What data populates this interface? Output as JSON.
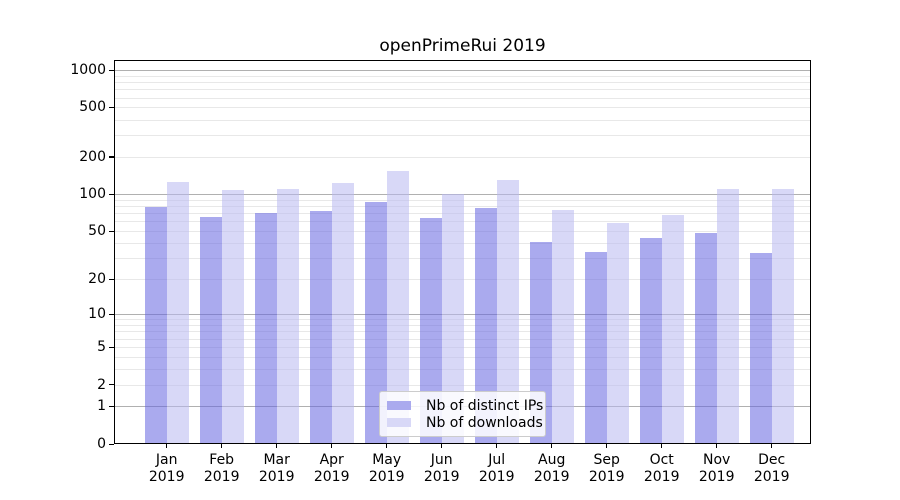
{
  "chart_data": {
    "type": "bar",
    "title": "openPrimeRui 2019",
    "categories": [
      "Jan 2019",
      "Feb 2019",
      "Mar 2019",
      "Apr 2019",
      "May 2019",
      "Jun 2019",
      "Jul 2019",
      "Aug 2019",
      "Sep 2019",
      "Oct 2019",
      "Nov 2019",
      "Dec 2019"
    ],
    "x_tick_months": [
      "Jan",
      "Feb",
      "Mar",
      "Apr",
      "May",
      "Jun",
      "Jul",
      "Aug",
      "Sep",
      "Oct",
      "Nov",
      "Dec"
    ],
    "x_tick_year": "2019",
    "series": [
      {
        "name": "Nb of distinct IPs",
        "legend_color": "#aaaaee",
        "fill": "rgba(100,100,224,0.55)",
        "values": [
          78,
          65,
          70,
          73,
          86,
          64,
          77,
          41,
          34,
          44,
          48,
          33
        ]
      },
      {
        "name": "Nb of downloads",
        "legend_color": "#d8d8f7",
        "fill": "rgba(184,184,240,0.55)",
        "values": [
          126,
          109,
          110,
          122,
          153,
          100,
          130,
          75,
          58,
          68,
          110,
          110
        ]
      }
    ],
    "yscale": "symlog_log10_1plusx",
    "yticks": [
      0,
      1,
      2,
      5,
      10,
      20,
      50,
      100,
      200,
      500,
      1000
    ],
    "ylim": [
      0,
      1200
    ],
    "grid": true,
    "legend_position": "lower center",
    "xlabel": "",
    "ylabel": ""
  },
  "colors": {
    "background": "#ffffff",
    "axis": "#000000",
    "grid_major": "#b0b0b0",
    "grid_minor": "#e8e8e8",
    "legend_border": "#cccccc",
    "text": "#000000"
  }
}
